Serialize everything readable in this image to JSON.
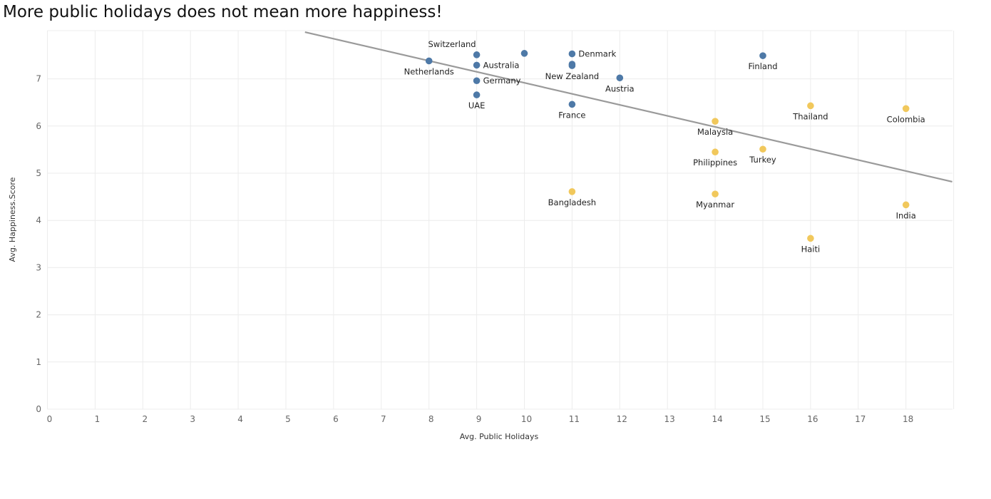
{
  "chart_data": {
    "type": "scatter",
    "title": "More public holidays does not mean more happiness!",
    "xlabel": "Avg. Public Holidays",
    "ylabel": "Avg. Happiness.Score",
    "xlim": [
      0,
      19
    ],
    "ylim": [
      0,
      8
    ],
    "xticks": [
      0,
      1,
      2,
      3,
      4,
      5,
      6,
      7,
      8,
      9,
      10,
      11,
      12,
      13,
      14,
      15,
      16,
      17,
      18
    ],
    "yticks": [
      0,
      1,
      2,
      3,
      4,
      5,
      6,
      7
    ],
    "grid": true,
    "colors": {
      "group_high": "#4e79a7",
      "group_low": "#f1c85c",
      "trend": "#9a9a9a"
    },
    "trendline": {
      "x": [
        5.4,
        18.97
      ],
      "y": [
        7.99,
        4.82
      ]
    },
    "points": [
      {
        "name": "Netherlands",
        "x": 8,
        "y": 7.38,
        "group": "high",
        "label_pos": "below"
      },
      {
        "name": "Switzerland",
        "x": 9,
        "y": 7.51,
        "group": "high",
        "label_pos": "above-left"
      },
      {
        "name": "Australia",
        "x": 9,
        "y": 7.29,
        "group": "high",
        "label_pos": "right"
      },
      {
        "name": "Germany",
        "x": 9,
        "y": 6.96,
        "group": "high",
        "label_pos": "right"
      },
      {
        "name": "UAE",
        "x": 9,
        "y": 6.66,
        "group": "high",
        "label_pos": "below"
      },
      {
        "name": "",
        "x": 10,
        "y": 7.54,
        "group": "high",
        "label_pos": "none"
      },
      {
        "name": "Denmark",
        "x": 11,
        "y": 7.53,
        "group": "high",
        "label_pos": "right"
      },
      {
        "name": "",
        "x": 11,
        "y": 7.31,
        "group": "high",
        "label_pos": "none"
      },
      {
        "name": "New Zealand",
        "x": 11,
        "y": 7.28,
        "group": "high",
        "label_pos": "below"
      },
      {
        "name": "France",
        "x": 11,
        "y": 6.46,
        "group": "high",
        "label_pos": "below"
      },
      {
        "name": "Austria",
        "x": 12,
        "y": 7.02,
        "group": "high",
        "label_pos": "below"
      },
      {
        "name": "Finland",
        "x": 15,
        "y": 7.49,
        "group": "high",
        "label_pos": "below"
      },
      {
        "name": "Bangladesh",
        "x": 11,
        "y": 4.61,
        "group": "low",
        "label_pos": "below"
      },
      {
        "name": "Malaysia",
        "x": 14,
        "y": 6.1,
        "group": "low",
        "label_pos": "below"
      },
      {
        "name": "Philippines",
        "x": 14,
        "y": 5.45,
        "group": "low",
        "label_pos": "below"
      },
      {
        "name": "Myanmar",
        "x": 14,
        "y": 4.56,
        "group": "low",
        "label_pos": "below"
      },
      {
        "name": "Turkey",
        "x": 15,
        "y": 5.51,
        "group": "low",
        "label_pos": "below"
      },
      {
        "name": "Thailand",
        "x": 16,
        "y": 6.43,
        "group": "low",
        "label_pos": "below"
      },
      {
        "name": "Haiti",
        "x": 16,
        "y": 3.62,
        "group": "low",
        "label_pos": "below"
      },
      {
        "name": "Colombia",
        "x": 18,
        "y": 6.37,
        "group": "low",
        "label_pos": "below"
      },
      {
        "name": "India",
        "x": 18,
        "y": 4.33,
        "group": "low",
        "label_pos": "below"
      }
    ]
  }
}
